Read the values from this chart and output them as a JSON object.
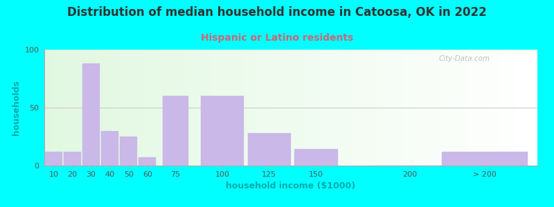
{
  "title": "Distribution of median household income in Catoosa, OK in 2022",
  "subtitle": "Hispanic or Latino residents",
  "xlabel": "household income ($1000)",
  "ylabel": "households",
  "background_color": "#00FFFF",
  "bar_color": "#c9b8e8",
  "bar_edgecolor": "#c9b8e8",
  "title_color": "#333333",
  "subtitle_color": "#cc6677",
  "axis_label_color": "#00aaaa",
  "tick_label_color": "#555555",
  "watermark": "City-Data.com",
  "ylim": [
    0,
    100
  ],
  "yticks": [
    0,
    50,
    100
  ],
  "categories": [
    "10",
    "20",
    "30",
    "40",
    "50",
    "60",
    "75",
    "100",
    "125",
    "150",
    "200",
    "> 200"
  ],
  "bar_heights": [
    12,
    12,
    88,
    30,
    25,
    7,
    60,
    60,
    28,
    14,
    0,
    12
  ],
  "x_positions": [
    10,
    20,
    30,
    40,
    50,
    60,
    75,
    100,
    125,
    150,
    200,
    240
  ],
  "x_widths": [
    10,
    10,
    10,
    10,
    10,
    10,
    15,
    25,
    25,
    25,
    40,
    50
  ],
  "xlim_left": 5,
  "xlim_right": 268,
  "xtick_positions": [
    10,
    20,
    30,
    40,
    50,
    60,
    75,
    100,
    125,
    150,
    200,
    240
  ],
  "title_fontsize": 12,
  "subtitle_fontsize": 10,
  "axis_label_fontsize": 9,
  "tick_fontsize": 8
}
